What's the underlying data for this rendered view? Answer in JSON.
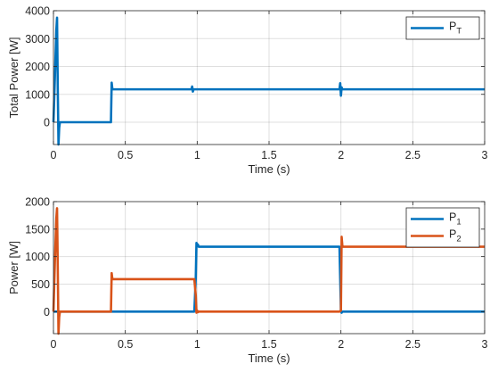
{
  "colors": {
    "series_blue": "#0072BD",
    "series_orange": "#D95319",
    "axis": "#262626",
    "grid": "#262626"
  },
  "chart_data": [
    {
      "type": "line",
      "xlabel": "Time (s)",
      "ylabel": "Total Power [W]",
      "xlim": [
        0,
        3
      ],
      "ylim": [
        -800,
        4000
      ],
      "xticks": [
        0,
        0.5,
        1,
        1.5,
        2,
        2.5,
        3
      ],
      "xtick_labels": [
        "0",
        "0.5",
        "1",
        "1.5",
        "2",
        "2.5",
        "3"
      ],
      "yticks": [
        0,
        1000,
        2000,
        3000,
        4000
      ],
      "ytick_labels": [
        "0",
        "1000",
        "2000",
        "3000",
        "4000"
      ],
      "legend_placement": "top-right",
      "series": [
        {
          "name": "P_T",
          "legend": {
            "main": "P",
            "sub": "T"
          },
          "color_key": "series_blue",
          "x": [
            0,
            0.01,
            0.02,
            0.025,
            0.03,
            0.035,
            0.04,
            0.045,
            0.05,
            0.39,
            0.4,
            0.405,
            0.41,
            0.96,
            0.965,
            0.97,
            0.975,
            1.99,
            1.995,
            2.0,
            2.005,
            2.01,
            3.0
          ],
          "y": [
            0,
            1600,
            3300,
            3750,
            1200,
            -800,
            -200,
            0,
            0,
            0,
            0,
            1420,
            1180,
            1180,
            1280,
            1100,
            1180,
            1180,
            1400,
            950,
            1250,
            1180,
            1180
          ]
        }
      ]
    },
    {
      "type": "line",
      "xlabel": "Time (s)",
      "ylabel": "Power [W]",
      "xlim": [
        0,
        3
      ],
      "ylim": [
        -400,
        2000
      ],
      "xticks": [
        0,
        0.5,
        1,
        1.5,
        2,
        2.5,
        3
      ],
      "xtick_labels": [
        "0",
        "0.5",
        "1",
        "1.5",
        "2",
        "2.5",
        "3"
      ],
      "yticks": [
        0,
        500,
        1000,
        1500,
        2000
      ],
      "ytick_labels": [
        "0",
        "500",
        "1000",
        "1500",
        "2000"
      ],
      "legend_placement": "top-right",
      "series": [
        {
          "name": "P_1",
          "legend": {
            "main": "P",
            "sub": "1"
          },
          "color_key": "series_blue",
          "x": [
            0,
            0.98,
            0.99,
            0.995,
            1.0,
            1.005,
            1.01,
            1.99,
            1.995,
            2.0,
            2.005,
            2.01,
            3.0
          ],
          "y": [
            0,
            0,
            600,
            1250,
            1200,
            1220,
            1180,
            1180,
            600,
            20,
            -20,
            0,
            0
          ]
        },
        {
          "name": "P_2",
          "legend": {
            "main": "P",
            "sub": "2"
          },
          "color_key": "series_orange",
          "x": [
            0,
            0.01,
            0.02,
            0.025,
            0.03,
            0.035,
            0.04,
            0.045,
            0.05,
            0.39,
            0.4,
            0.405,
            0.41,
            0.98,
            0.99,
            0.995,
            1.0,
            1.005,
            1.01,
            1.99,
            2.0,
            2.005,
            2.01,
            2.015,
            3.0
          ],
          "y": [
            0,
            900,
            1700,
            1880,
            800,
            -400,
            -100,
            0,
            0,
            0,
            0,
            700,
            590,
            590,
            300,
            -20,
            20,
            -10,
            0,
            0,
            20,
            1360,
            1200,
            1180,
            1180
          ]
        }
      ]
    }
  ]
}
